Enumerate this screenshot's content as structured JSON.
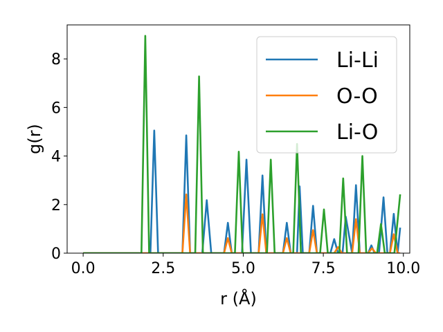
{
  "chart_data": {
    "type": "line",
    "xlabel": "r (Å)",
    "ylabel": "g(r)",
    "xlim": [
      -0.5,
      10.2
    ],
    "ylim": [
      0,
      9.4
    ],
    "xticks": [
      0.0,
      2.5,
      5.0,
      7.5,
      10.0
    ],
    "xtick_labels": [
      "0.0",
      "2.5",
      "5.0",
      "7.5",
      "10.0"
    ],
    "yticks": [
      0,
      2,
      4,
      6,
      8
    ],
    "ytick_labels": [
      "0",
      "2",
      "4",
      "6",
      "8"
    ],
    "grid": false,
    "legend_position": "top-right",
    "series": [
      {
        "name": "Li-Li",
        "color": "#1f77b4",
        "x": [
          0.0,
          2.1,
          2.22,
          2.34,
          3.1,
          3.22,
          3.34,
          3.72,
          3.86,
          4.0,
          4.4,
          4.52,
          4.64,
          4.96,
          5.1,
          5.24,
          5.48,
          5.6,
          5.72,
          6.24,
          6.36,
          6.48,
          6.68,
          6.76,
          6.86,
          6.96,
          7.06,
          7.18,
          7.3,
          7.72,
          7.84,
          7.96,
          8.0,
          8.1,
          8.2,
          8.4,
          8.52,
          8.64,
          8.9,
          9.0,
          9.1,
          9.24,
          9.38,
          9.5,
          9.58,
          9.7,
          9.82,
          9.9
        ],
        "values": [
          0.0,
          0.0,
          5.05,
          0.0,
          0.0,
          4.85,
          0.0,
          0.0,
          2.18,
          0.0,
          0.0,
          1.25,
          0.0,
          0.0,
          3.85,
          0.0,
          0.0,
          3.2,
          0.0,
          0.0,
          1.25,
          0.0,
          0.0,
          2.75,
          0.0,
          0.0,
          0.0,
          1.95,
          0.0,
          0.0,
          0.58,
          0.0,
          0.0,
          0.0,
          1.5,
          0.0,
          2.8,
          0.0,
          0.0,
          0.32,
          0.0,
          0.0,
          2.3,
          0.0,
          0.0,
          1.62,
          0.0,
          1.05
        ]
      },
      {
        "name": "O-O",
        "color": "#ff7f0e",
        "x": [
          0.0,
          3.1,
          3.22,
          3.34,
          4.4,
          4.52,
          4.64,
          5.48,
          5.6,
          5.72,
          6.24,
          6.36,
          6.48,
          7.06,
          7.18,
          7.3,
          7.84,
          7.96,
          8.08,
          8.4,
          8.52,
          8.64,
          8.9,
          9.02,
          9.14,
          9.58,
          9.7,
          9.82,
          9.9
        ],
        "values": [
          0.0,
          0.0,
          2.42,
          0.0,
          0.0,
          0.62,
          0.0,
          0.0,
          1.6,
          0.0,
          0.0,
          0.62,
          0.0,
          0.0,
          0.95,
          0.0,
          0.0,
          0.25,
          0.0,
          0.0,
          1.4,
          0.0,
          0.0,
          0.2,
          0.0,
          0.0,
          0.78,
          0.0,
          0.0
        ]
      },
      {
        "name": "Li-O",
        "color": "#2ca02c",
        "x": [
          0.0,
          1.82,
          1.94,
          2.06,
          3.5,
          3.62,
          3.74,
          4.74,
          4.86,
          4.98,
          5.74,
          5.86,
          5.98,
          6.56,
          6.68,
          6.8,
          7.4,
          7.52,
          7.64,
          8.0,
          8.12,
          8.24,
          8.6,
          8.72,
          8.84,
          9.18,
          9.3,
          9.42,
          9.72,
          9.9
        ],
        "values": [
          0.0,
          0.0,
          8.95,
          0.0,
          0.0,
          7.28,
          0.0,
          0.0,
          4.18,
          0.0,
          0.0,
          3.85,
          0.0,
          0.0,
          4.5,
          0.0,
          0.0,
          1.8,
          0.0,
          0.0,
          3.08,
          0.0,
          0.0,
          4.0,
          0.0,
          0.0,
          1.2,
          0.0,
          0.0,
          2.42
        ]
      }
    ]
  }
}
